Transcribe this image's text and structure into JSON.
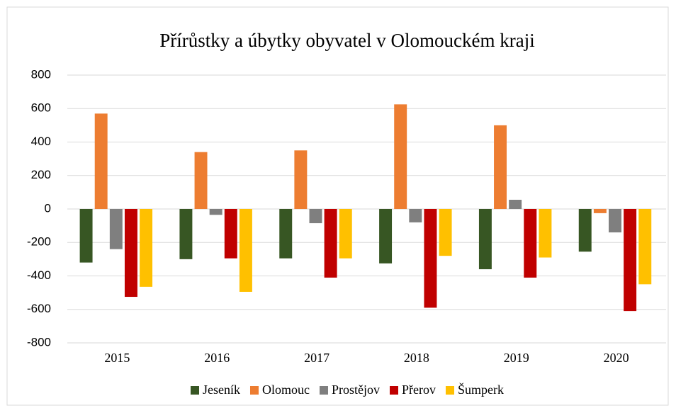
{
  "chart_data": {
    "type": "bar",
    "title": "Přírůstky a úbytky obyvatel v Olomouckém kraji",
    "categories": [
      "2015",
      "2016",
      "2017",
      "2018",
      "2019",
      "2020"
    ],
    "series": [
      {
        "name": "Jeseník",
        "color": "#375623",
        "values": [
          -320,
          -300,
          -295,
          -325,
          -360,
          -255
        ]
      },
      {
        "name": "Olomouc",
        "color": "#ED7D31",
        "values": [
          570,
          340,
          350,
          625,
          500,
          -25
        ]
      },
      {
        "name": "Prostějov",
        "color": "#7F7F7F",
        "values": [
          -240,
          -35,
          -85,
          -80,
          55,
          -140
        ]
      },
      {
        "name": "Přerov",
        "color": "#C00000",
        "values": [
          -525,
          -295,
          -410,
          -590,
          -410,
          -610
        ]
      },
      {
        "name": "Šumperk",
        "color": "#FFC000",
        "values": [
          -465,
          -495,
          -295,
          -280,
          -290,
          -450
        ]
      }
    ],
    "ylim": [
      -800,
      800
    ],
    "yticks": [
      -800,
      -600,
      -400,
      -200,
      0,
      200,
      400,
      600,
      800
    ],
    "grid": true,
    "legend": "bottom"
  }
}
